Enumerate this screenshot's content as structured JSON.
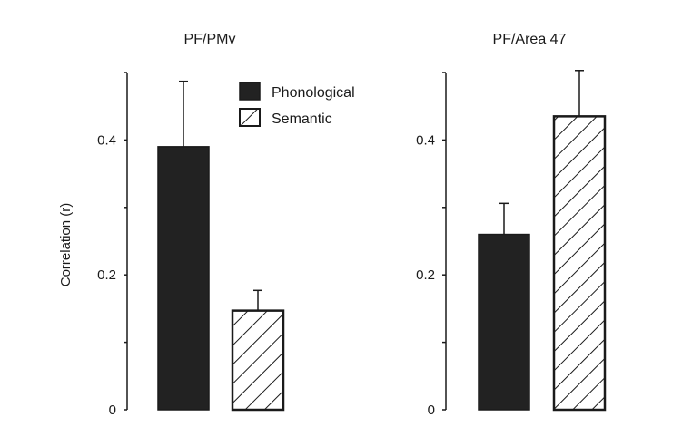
{
  "chart_data": [
    {
      "type": "bar",
      "title": "PF/PMv",
      "ylabel": "Correlation (r)",
      "categories": [
        "Phonological",
        "Semantic"
      ],
      "values": [
        0.39,
        0.147
      ],
      "errors": [
        0.097,
        0.03
      ],
      "ylim": [
        0,
        0.5
      ],
      "yticks": [
        0,
        0.2,
        0.4
      ],
      "ytick_labels": [
        "0",
        "0.2",
        "0.4"
      ],
      "legend": {
        "placement": "top-right",
        "entries": [
          {
            "label": "Phonological",
            "fill": "solid"
          },
          {
            "label": "Semantic",
            "fill": "hatched"
          }
        ]
      }
    },
    {
      "type": "bar",
      "title": "PF/Area 47",
      "categories": [
        "Phonological",
        "Semantic"
      ],
      "values": [
        0.26,
        0.435
      ],
      "errors": [
        0.046,
        0.068
      ],
      "ylim": [
        0,
        0.5
      ],
      "yticks": [
        0,
        0.2,
        0.4
      ],
      "ytick_labels": [
        "0",
        "0.2",
        "0.4"
      ]
    }
  ],
  "colors": {
    "bar_fill": "#222222",
    "hatch_bg": "#ffffff",
    "axis": "#1a1a1a"
  }
}
